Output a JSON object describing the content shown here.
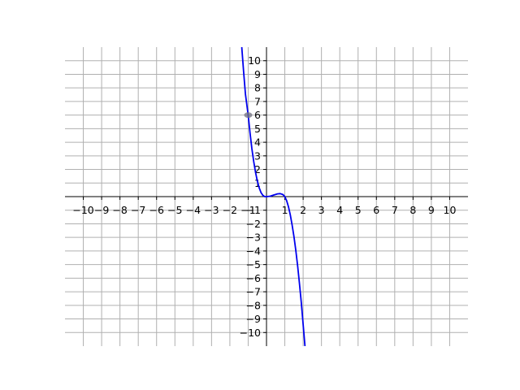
{
  "chart_data": {
    "type": "line",
    "title": "",
    "xlabel": "",
    "ylabel": "",
    "xlim": [
      -11,
      11
    ],
    "ylim": [
      -11,
      11
    ],
    "grid": true,
    "x_ticks": [
      -10,
      -9,
      -8,
      -7,
      -6,
      -5,
      -4,
      -3,
      -2,
      -1,
      1,
      2,
      3,
      4,
      5,
      6,
      7,
      8,
      9,
      10
    ],
    "y_ticks": [
      -10,
      -9,
      -8,
      -7,
      -6,
      -5,
      -4,
      -3,
      -2,
      -1,
      1,
      2,
      3,
      4,
      5,
      6,
      7,
      8,
      9,
      10
    ],
    "x_tick_labels": [
      "−10",
      "−9",
      "−8",
      "−7",
      "−6",
      "−5",
      "−4",
      "−3",
      "−2",
      "−1",
      "1",
      "2",
      "3",
      "4",
      "5",
      "6",
      "7",
      "8",
      "9",
      "10"
    ],
    "y_tick_labels": [
      "−10",
      "−9",
      "−8",
      "−7",
      "−6",
      "−5",
      "−4",
      "−3",
      "−2",
      "−1",
      "1",
      "2",
      "3",
      "4",
      "5",
      "6",
      "7",
      "8",
      "9",
      "10"
    ],
    "series": [
      {
        "color": "#0000ee",
        "points": [
          [
            -1.35,
            11
          ],
          [
            -1.25,
            9.2
          ],
          [
            -1.15,
            7.55
          ],
          [
            -1.0,
            6.0
          ],
          [
            -0.9,
            4.7
          ],
          [
            -0.8,
            3.55
          ],
          [
            -0.7,
            2.6
          ],
          [
            -0.6,
            1.8
          ],
          [
            -0.5,
            1.15
          ],
          [
            -0.4,
            0.65
          ],
          [
            -0.3,
            0.3
          ],
          [
            -0.2,
            0.1
          ],
          [
            -0.1,
            0.0
          ],
          [
            0.0,
            0.0
          ],
          [
            0.2,
            0.03
          ],
          [
            0.4,
            0.12
          ],
          [
            0.6,
            0.2
          ],
          [
            0.75,
            0.22
          ],
          [
            0.9,
            0.15
          ],
          [
            1.0,
            0.0
          ],
          [
            1.1,
            -0.3
          ],
          [
            1.2,
            -0.75
          ],
          [
            1.3,
            -1.35
          ],
          [
            1.4,
            -2.1
          ],
          [
            1.5,
            -2.95
          ],
          [
            1.6,
            -3.95
          ],
          [
            1.7,
            -5.1
          ],
          [
            1.8,
            -6.4
          ],
          [
            1.9,
            -7.8
          ],
          [
            2.0,
            -9.4
          ],
          [
            2.1,
            -11
          ]
        ]
      }
    ],
    "markers": [
      {
        "x": -1,
        "y": 6,
        "color": "#6f6f7f"
      }
    ]
  }
}
